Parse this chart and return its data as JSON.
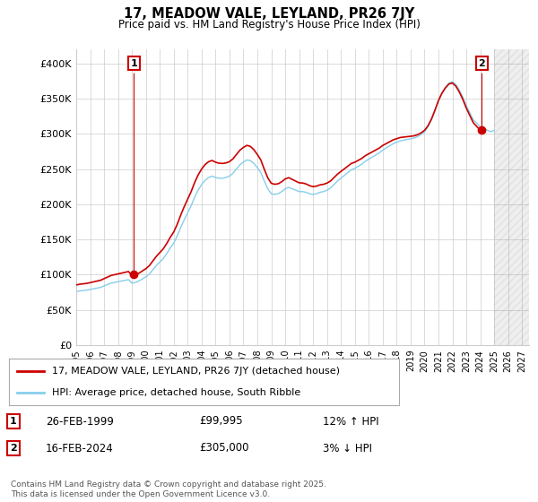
{
  "title": "17, MEADOW VALE, LEYLAND, PR26 7JY",
  "subtitle": "Price paid vs. HM Land Registry's House Price Index (HPI)",
  "ylim": [
    0,
    420000
  ],
  "yticks": [
    0,
    50000,
    100000,
    150000,
    200000,
    250000,
    300000,
    350000,
    400000
  ],
  "ytick_labels": [
    "£0",
    "£50K",
    "£100K",
    "£150K",
    "£200K",
    "£250K",
    "£300K",
    "£350K",
    "£400K"
  ],
  "xlim_start": 1995.0,
  "xlim_end": 2027.5,
  "legend_line1": "17, MEADOW VALE, LEYLAND, PR26 7JY (detached house)",
  "legend_line2": "HPI: Average price, detached house, South Ribble",
  "annotation1_date": "26-FEB-1999",
  "annotation1_price": "£99,995",
  "annotation1_hpi": "12% ↑ HPI",
  "annotation2_date": "16-FEB-2024",
  "annotation2_price": "£305,000",
  "annotation2_hpi": "3% ↓ HPI",
  "footer": "Contains HM Land Registry data © Crown copyright and database right 2025.\nThis data is licensed under the Open Government Licence v3.0.",
  "color_red": "#cc0000",
  "color_blue": "#87CEEB",
  "background_color": "#ffffff",
  "grid_color": "#cccccc",
  "hpi_years": [
    1995.0,
    1995.25,
    1995.5,
    1995.75,
    1996.0,
    1996.25,
    1996.5,
    1996.75,
    1997.0,
    1997.25,
    1997.5,
    1997.75,
    1998.0,
    1998.25,
    1998.5,
    1998.75,
    1999.0,
    1999.25,
    1999.5,
    1999.75,
    2000.0,
    2000.25,
    2000.5,
    2000.75,
    2001.0,
    2001.25,
    2001.5,
    2001.75,
    2002.0,
    2002.25,
    2002.5,
    2002.75,
    2003.0,
    2003.25,
    2003.5,
    2003.75,
    2004.0,
    2004.25,
    2004.5,
    2004.75,
    2005.0,
    2005.25,
    2005.5,
    2005.75,
    2006.0,
    2006.25,
    2006.5,
    2006.75,
    2007.0,
    2007.25,
    2007.5,
    2007.75,
    2008.0,
    2008.25,
    2008.5,
    2008.75,
    2009.0,
    2009.25,
    2009.5,
    2009.75,
    2010.0,
    2010.25,
    2010.5,
    2010.75,
    2011.0,
    2011.25,
    2011.5,
    2011.75,
    2012.0,
    2012.25,
    2012.5,
    2012.75,
    2013.0,
    2013.25,
    2013.5,
    2013.75,
    2014.0,
    2014.25,
    2014.5,
    2014.75,
    2015.0,
    2015.25,
    2015.5,
    2015.75,
    2016.0,
    2016.25,
    2016.5,
    2016.75,
    2017.0,
    2017.25,
    2017.5,
    2017.75,
    2018.0,
    2018.25,
    2018.5,
    2018.75,
    2019.0,
    2019.25,
    2019.5,
    2019.75,
    2020.0,
    2020.25,
    2020.5,
    2020.75,
    2021.0,
    2021.25,
    2021.5,
    2021.75,
    2022.0,
    2022.25,
    2022.5,
    2022.75,
    2023.0,
    2023.25,
    2023.5,
    2023.75,
    2024.0,
    2024.25,
    2024.5,
    2024.75,
    2025.0
  ],
  "hpi_values": [
    76000,
    77000,
    77500,
    78000,
    79000,
    80000,
    81000,
    82000,
    84000,
    86000,
    88000,
    89000,
    90000,
    91000,
    92000,
    93000,
    88000,
    89000,
    91000,
    94000,
    97000,
    101000,
    107000,
    113000,
    118000,
    123000,
    130000,
    138000,
    145000,
    155000,
    167000,
    178000,
    188000,
    198000,
    210000,
    220000,
    228000,
    234000,
    238000,
    240000,
    238000,
    237000,
    237000,
    238000,
    240000,
    244000,
    250000,
    256000,
    260000,
    263000,
    262000,
    258000,
    252000,
    245000,
    233000,
    222000,
    215000,
    214000,
    215000,
    218000,
    222000,
    224000,
    222000,
    220000,
    218000,
    218000,
    217000,
    215000,
    214000,
    215000,
    217000,
    218000,
    220000,
    223000,
    228000,
    233000,
    237000,
    241000,
    245000,
    249000,
    251000,
    254000,
    257000,
    261000,
    264000,
    267000,
    270000,
    273000,
    277000,
    280000,
    283000,
    286000,
    288000,
    290000,
    291000,
    292000,
    293000,
    294000,
    296000,
    299000,
    303000,
    310000,
    320000,
    333000,
    347000,
    358000,
    366000,
    372000,
    374000,
    370000,
    362000,
    352000,
    340000,
    330000,
    320000,
    315000,
    310000,
    308000,
    305000,
    303000,
    305000
  ],
  "p1_year": 1999.15,
  "p1_val": 99995,
  "p2_year": 2024.12,
  "p2_val": 305000,
  "xtick_years": [
    1995,
    1996,
    1997,
    1998,
    1999,
    2000,
    2001,
    2002,
    2003,
    2004,
    2005,
    2006,
    2007,
    2008,
    2009,
    2010,
    2011,
    2012,
    2013,
    2014,
    2015,
    2016,
    2017,
    2018,
    2019,
    2020,
    2021,
    2022,
    2023,
    2024,
    2025,
    2026,
    2027
  ]
}
